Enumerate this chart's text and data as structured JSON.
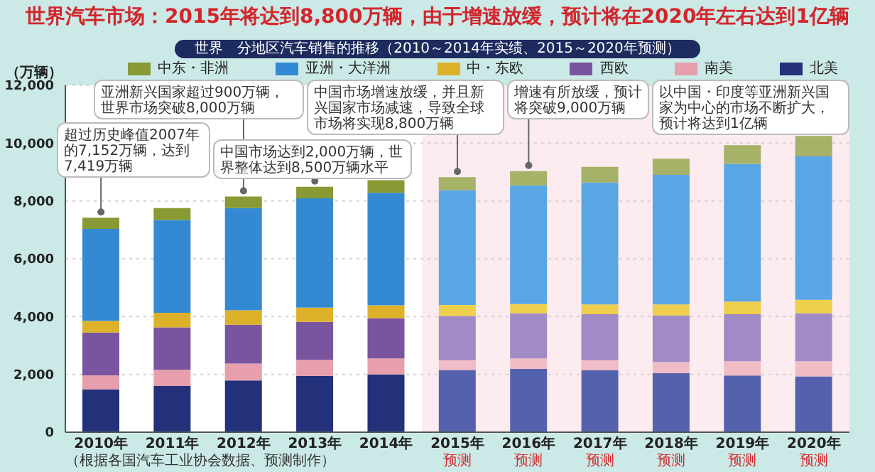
{
  "chart_data": {
    "type": "bar",
    "stacked": true,
    "title": "世界汽车市场：2015年将达到8,800万辆，由于增速放缓，预计将在2020年左右达到1亿辆",
    "subtitle": "世界　分地区汽车销售的推移（2010～2014年实绩、2015～2020年预测）",
    "ylabel": "（万辆）",
    "categories": [
      "2010年",
      "2011年",
      "2012年",
      "2013年",
      "2014年",
      "2015年",
      "2016年",
      "2017年",
      "2018年",
      "2019年",
      "2020年"
    ],
    "series": [
      {
        "name": "北美",
        "color": "#23307a",
        "colors": [
          "#23307a",
          "#23307a",
          "#23307a",
          "#23307a",
          "#23307a",
          "#5462ae",
          "#5462ae",
          "#5462ae",
          "#5462ae",
          "#5462ae",
          "#5462ae"
        ],
        "values": [
          1480,
          1600,
          1790,
          1940,
          2000,
          2150,
          2190,
          2140,
          2050,
          1960,
          1930
        ]
      },
      {
        "name": "南美",
        "color": "#e79fae",
        "colors": [
          "#e79fae",
          "#e79fae",
          "#e79fae",
          "#e79fae",
          "#e79fae",
          "#f0bcc6",
          "#f0bcc6",
          "#f0bcc6",
          "#f0bcc6",
          "#f0bcc6",
          "#f0bcc6"
        ],
        "values": [
          490,
          560,
          580,
          570,
          550,
          340,
          360,
          350,
          380,
          490,
          520
        ]
      },
      {
        "name": "西欧",
        "color": "#7a559f",
        "colors": [
          "#7a559f",
          "#7a559f",
          "#7a559f",
          "#7a559f",
          "#7a559f",
          "#a08bc6",
          "#a08bc6",
          "#a08bc6",
          "#a08bc6",
          "#a08bc6",
          "#a08bc6"
        ],
        "values": [
          1480,
          1470,
          1350,
          1310,
          1390,
          1530,
          1560,
          1590,
          1610,
          1630,
          1660
        ]
      },
      {
        "name": "中・东欧",
        "color": "#deb12a",
        "colors": [
          "#deb12a",
          "#deb12a",
          "#deb12a",
          "#deb12a",
          "#deb12a",
          "#eecf4e",
          "#eecf4e",
          "#eecf4e",
          "#eecf4e",
          "#eecf4e",
          "#eecf4e"
        ],
        "values": [
          400,
          500,
          500,
          490,
          450,
          380,
          320,
          340,
          380,
          440,
          470
        ]
      },
      {
        "name": "亚洲・大洋洲",
        "color": "#348ad2",
        "colors": [
          "#348ad2",
          "#348ad2",
          "#348ad2",
          "#348ad2",
          "#348ad2",
          "#5aa6e4",
          "#5aa6e4",
          "#5aa6e4",
          "#5aa6e4",
          "#5aa6e4",
          "#5aa6e4"
        ],
        "values": [
          3180,
          3210,
          3530,
          3780,
          3890,
          3970,
          4110,
          4220,
          4480,
          4760,
          4960
        ]
      },
      {
        "name": "中东・非洲",
        "color": "#879a33",
        "colors": [
          "#879a33",
          "#879a33",
          "#879a33",
          "#879a33",
          "#879a33",
          "#a6b268",
          "#a6b268",
          "#a6b268",
          "#a6b268",
          "#a6b268",
          "#a6b268"
        ],
        "values": [
          390,
          410,
          400,
          400,
          440,
          450,
          490,
          540,
          560,
          650,
          710
        ]
      }
    ],
    "ylim": [
      0,
      12000
    ],
    "yticks": [
      0,
      {
        "value": 2000,
        "label": "2,000"
      },
      {
        "value": 4000,
        "label": "4,000"
      },
      {
        "value": 6000,
        "label": "6,000"
      },
      {
        "value": 8000,
        "label": "8,000"
      },
      {
        "value": 10000,
        "label": "10,000"
      },
      {
        "value": 12000,
        "label": "12,000"
      }
    ],
    "grid": "y",
    "legend": "top",
    "bands": [
      {
        "axis": "x",
        "from": "2015年",
        "to": "2020年",
        "color": "#fcebef"
      }
    ],
    "annotations": [
      {
        "text": "超过历史峰值2007年的7,152万辆，达到7,419万辆",
        "x": "2010年",
        "y": 7419
      },
      {
        "text": "亚洲新兴国家超过900万辆，世界市场突破8,000万辆",
        "x": "2012年",
        "y": 8150
      },
      {
        "text": "中国市场达到2,000万辆，世界整体达到8,500万辆水平",
        "x": "2013年",
        "y": 8490
      },
      {
        "text": "中国市场增速放缓，并且新兴国家市场减速，导致全球市场将实现8,800万辆",
        "x": "2015年",
        "y": 8820
      },
      {
        "text": "增速有所放缓，预计将突破9,000万辆",
        "x": "2016年",
        "y": 9030
      },
      {
        "text": "以中国・印度等亚洲新兴国家为中心的市场不断扩大，预计将达到1亿辆",
        "x": "2020年",
        "y": 10250
      },
      "预测",
      "预测",
      "预测",
      "预测",
      "预测",
      "预测",
      "（根据各国汽车工业协会数据、预测制作）"
    ]
  }
}
